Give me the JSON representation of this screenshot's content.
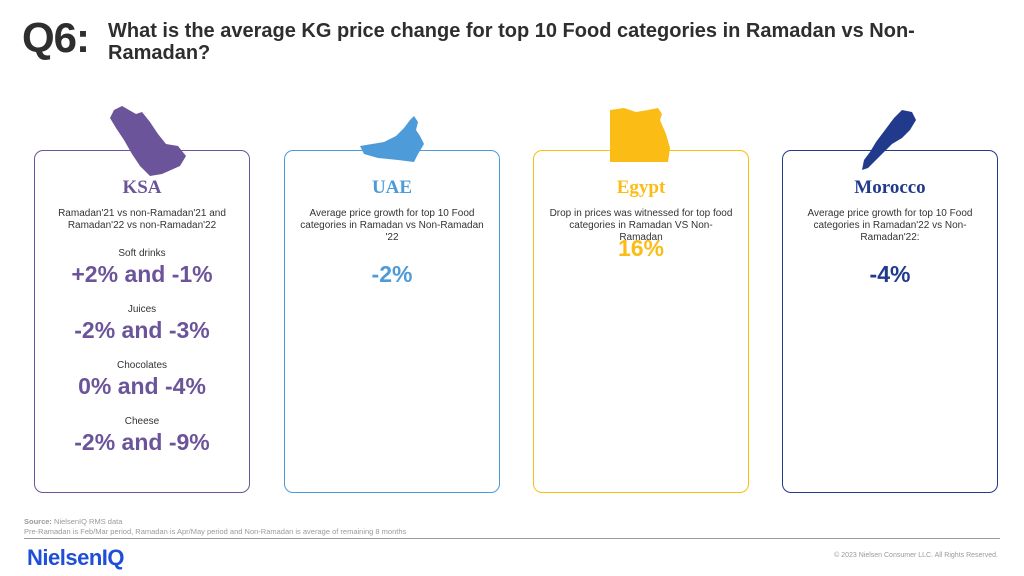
{
  "header": {
    "question_number": "Q6:",
    "question_text": "What is the average KG price change for top 10 Food categories in Ramadan vs Non-Ramadan?"
  },
  "colors": {
    "ksa": "#6b5499",
    "uae": "#4d9bd8",
    "egypt": "#fbbd15",
    "morocco": "#223a8c"
  },
  "cards": {
    "ksa": {
      "title": "KSA",
      "description": "Ramadan'21 vs non-Ramadan'21  and Ramadan'22 vs non-Ramadan'22",
      "icon": "saudi-arabia-map-icon",
      "items": [
        {
          "category": "Soft drinks",
          "value": "+2% and -1%"
        },
        {
          "category": "Juices",
          "value": "-2% and -3%"
        },
        {
          "category": "Chocolates",
          "value": "0% and -4%"
        },
        {
          "category": "Cheese",
          "value": "-2% and -9%"
        }
      ]
    },
    "uae": {
      "title": "UAE",
      "description": "Average  price growth for top 10 Food categories in Ramadan vs Non-Ramadan '22",
      "value": "-2%",
      "icon": "uae-map-icon"
    },
    "egypt": {
      "title": "Egypt",
      "description": "Drop in prices was witnessed for top food categories in Ramadan VS Non-Ramadan",
      "value": "16%",
      "icon": "egypt-map-icon"
    },
    "morocco": {
      "title": "Morocco",
      "description": "Average  price growth for top 10 Food categories in Ramadan'22 vs Non-Ramadan'22:",
      "value": "-4%",
      "icon": "morocco-map-icon"
    }
  },
  "footer": {
    "source_label": "Source:",
    "source_text": " NielsenIQ RMS data",
    "note": "Pre-Ramadan  is Feb/Mar period, Ramadan is Apr/May period and Non-Ramadan  is average of remaining  8 months",
    "logo": "NielsenIQ",
    "copyright": "© 2023 Nielsen Consumer LLC. All Rights Reserved."
  }
}
